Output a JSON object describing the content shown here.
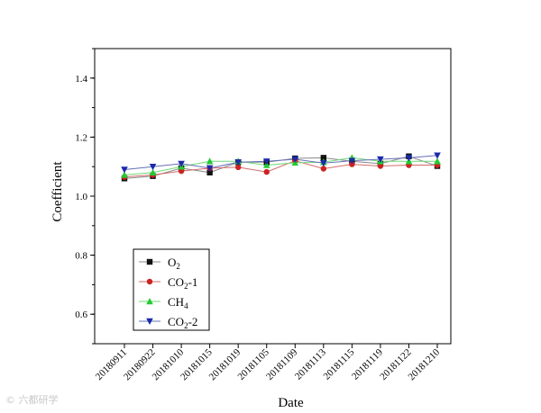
{
  "chart_data": {
    "type": "line",
    "xlabel": "Date",
    "ylabel": "Coefficient",
    "ylim": [
      0.5,
      1.5
    ],
    "yticks": [
      "0.6",
      "0.8",
      "1.0",
      "1.2",
      "1.4"
    ],
    "categories": [
      "20180911",
      "20180922",
      "20181010",
      "20181015",
      "20181019",
      "20181105",
      "20181109",
      "20181113",
      "20181115",
      "20181119",
      "20181122",
      "20181210"
    ],
    "legend_placement": "bottom-left",
    "grid": false,
    "series": [
      {
        "name": "O2",
        "legend_main": "O",
        "legend_sub": "2",
        "legend_suffix": "",
        "marker": "square",
        "color": "#111111",
        "line_color": "#888888",
        "values": [
          1.06,
          1.068,
          1.095,
          1.08,
          1.115,
          1.115,
          1.128,
          1.13,
          1.118,
          1.11,
          1.135,
          1.102
        ]
      },
      {
        "name": "CO2-1",
        "legend_main": "CO",
        "legend_sub": "2",
        "legend_suffix": "-1",
        "marker": "circle",
        "color": "#cc2222",
        "line_color": "#d36b6b",
        "values": [
          1.065,
          1.072,
          1.085,
          1.095,
          1.098,
          1.082,
          1.12,
          1.093,
          1.108,
          1.102,
          1.105,
          1.105
        ]
      },
      {
        "name": "CH4",
        "legend_main": "CH",
        "legend_sub": "4",
        "legend_suffix": "",
        "marker": "triangle-up",
        "color": "#22cc33",
        "line_color": "#6fd97a",
        "values": [
          1.072,
          1.08,
          1.1,
          1.118,
          1.118,
          1.105,
          1.113,
          1.115,
          1.13,
          1.118,
          1.118,
          1.118
        ]
      },
      {
        "name": "CO2-2",
        "legend_main": "CO",
        "legend_sub": "2",
        "legend_suffix": "-2",
        "marker": "triangle-down",
        "color": "#1a2aa8",
        "line_color": "#6670b8",
        "values": [
          1.09,
          1.1,
          1.11,
          1.095,
          1.115,
          1.118,
          1.125,
          1.112,
          1.12,
          1.125,
          1.13,
          1.138
        ]
      }
    ]
  },
  "watermark": "© 六都研学"
}
